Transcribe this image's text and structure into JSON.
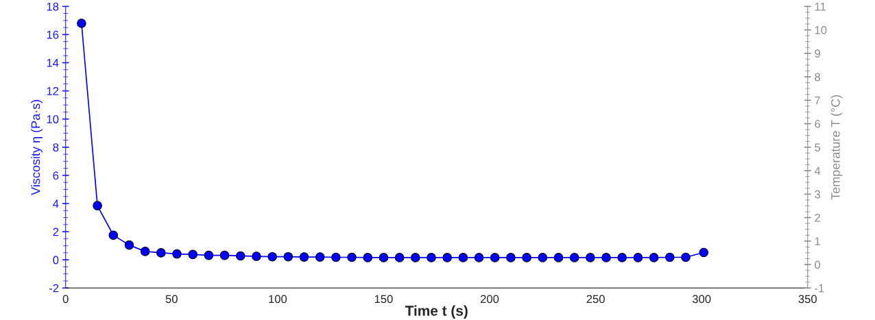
{
  "chart_data": {
    "type": "line",
    "xlabel": "Time t (s)",
    "ylabel": "Viscosity η (Pa·s)",
    "y2label": "Temperature T (°C)",
    "x": [
      7.5,
      15,
      22.5,
      30,
      37.5,
      45,
      52.5,
      60,
      67.5,
      75,
      82.5,
      90,
      97.5,
      105,
      112.5,
      120,
      127.5,
      135,
      142.5,
      150,
      157.5,
      165,
      172.5,
      180,
      187.5,
      195,
      202.5,
      210,
      217.5,
      225,
      232.5,
      240,
      247.5,
      255,
      262.5,
      270,
      277.5,
      285,
      292.5,
      301
    ],
    "series": [
      {
        "color": "#0000ee",
        "values": [
          16.8,
          3.85,
          1.75,
          1.05,
          0.6,
          0.5,
          0.42,
          0.38,
          0.32,
          0.32,
          0.28,
          0.25,
          0.22,
          0.22,
          0.2,
          0.2,
          0.18,
          0.18,
          0.16,
          0.16,
          0.16,
          0.16,
          0.16,
          0.16,
          0.16,
          0.16,
          0.16,
          0.16,
          0.16,
          0.16,
          0.16,
          0.16,
          0.16,
          0.16,
          0.16,
          0.16,
          0.16,
          0.18,
          0.18,
          0.52
        ]
      }
    ],
    "marker": "circle",
    "line_style": "solid",
    "grid": false,
    "legend": false,
    "xlim": [
      0,
      350
    ],
    "xticks": [
      0,
      50,
      100,
      150,
      200,
      250,
      300,
      350
    ],
    "ylim": [
      -2,
      18
    ],
    "yticks": [
      -2,
      0,
      2,
      4,
      6,
      8,
      10,
      12,
      14,
      16,
      18
    ],
    "y2lim": [
      -1,
      11
    ],
    "y2ticks": [
      -1,
      0,
      1,
      2,
      3,
      4,
      5,
      6,
      7,
      8,
      9,
      10,
      11
    ]
  }
}
